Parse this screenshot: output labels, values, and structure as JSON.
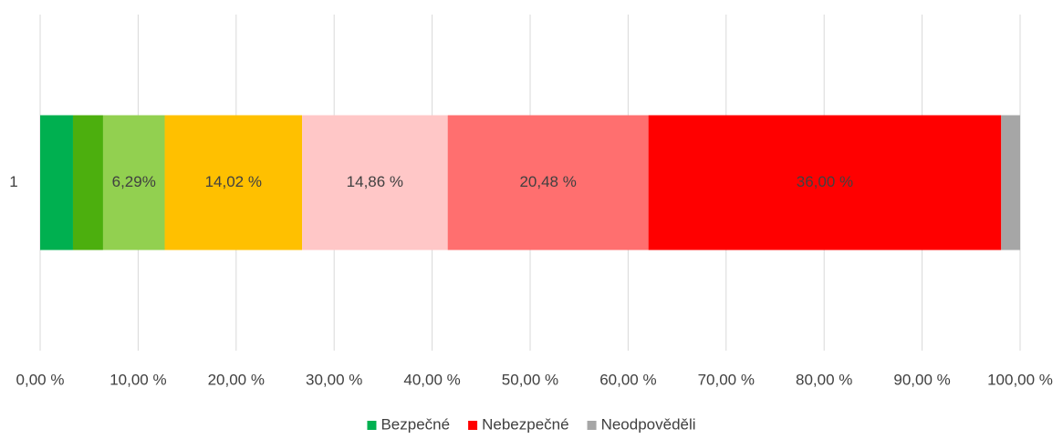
{
  "chart_data": {
    "type": "stacked_bar_horizontal",
    "categories": [
      "1"
    ],
    "series": [
      {
        "name": "Bezpečné",
        "color": "#00b050",
        "values": [
          3.35
        ]
      },
      {
        "color": "#4caf0e",
        "values": [
          3.07
        ]
      },
      {
        "color": "#92d050",
        "values": [
          6.29
        ],
        "value_labels": [
          "6,29%"
        ]
      },
      {
        "color": "#ffc000",
        "values": [
          14.02
        ],
        "value_labels": [
          "14,02 %"
        ]
      },
      {
        "color": "#ffc7c7",
        "values": [
          14.86
        ],
        "value_labels": [
          "14,86 %"
        ]
      },
      {
        "color": "#ff6f6f",
        "values": [
          20.48
        ],
        "value_labels": [
          "20,48 %"
        ]
      },
      {
        "name": "Nebezpečné",
        "color": "#ff0000",
        "values": [
          36.0
        ],
        "value_labels": [
          "36,00 %"
        ]
      },
      {
        "name": "Neodpověděli",
        "color": "#a6a6a6",
        "values": [
          1.93
        ]
      }
    ],
    "xlim": [
      0,
      100
    ],
    "xticks": [
      {
        "value": 0,
        "label": "0,00 %"
      },
      {
        "value": 10,
        "label": "10,00 %"
      },
      {
        "value": 20,
        "label": "20,00 %"
      },
      {
        "value": 30,
        "label": "30,00 %"
      },
      {
        "value": 40,
        "label": "40,00 %"
      },
      {
        "value": 50,
        "label": "50,00 %"
      },
      {
        "value": 60,
        "label": "60,00 %"
      },
      {
        "value": 70,
        "label": "70,00 %"
      },
      {
        "value": 80,
        "label": "80,00 %"
      },
      {
        "value": 90,
        "label": "90,00 %"
      },
      {
        "value": 100,
        "label": "100,00 %"
      }
    ],
    "grid": true,
    "legend": "bottom"
  }
}
